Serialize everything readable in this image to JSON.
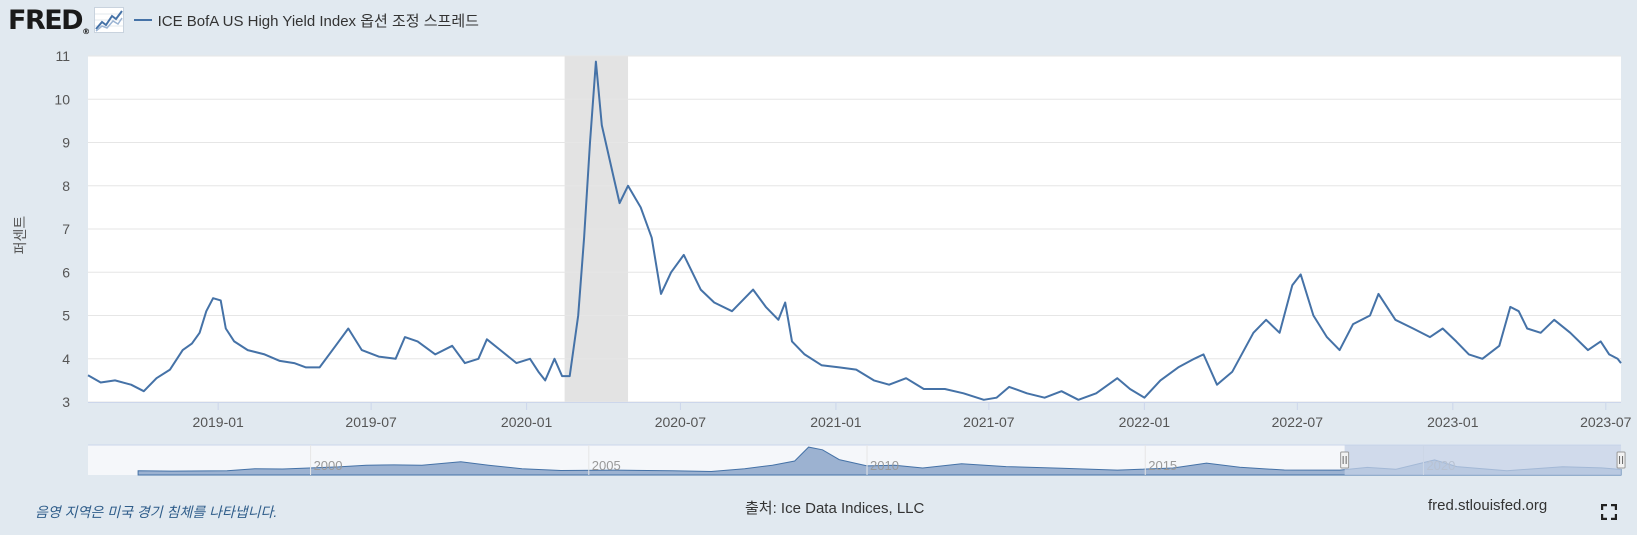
{
  "header": {
    "logo_text": "FRED",
    "logo_mark": "®",
    "series_title": "ICE BofA US High Yield Index 옵션 조정 스프레드"
  },
  "yaxis_title": "퍼센트",
  "footer": {
    "recession_note": "음영 지역은 미국 경기 침체를 나타냅니다.",
    "source": "출처: Ice Data Indices, LLC",
    "site": "fred.stlouisfed.org"
  },
  "icons": {
    "logo_chart": "line-chart-icon",
    "fullscreen": "fullscreen-icon"
  },
  "colors": {
    "line": "#4572a7",
    "recession": "#e3e3e3",
    "navigator_fill": "#7d9bc3",
    "navigator_mask": "#c3d0e6"
  },
  "chart_data": {
    "type": "line",
    "series": [
      {
        "values": [
          [
            "2018-07-31",
            3.62
          ],
          [
            "2018-08-15",
            3.45
          ],
          [
            "2018-09-01",
            3.5
          ],
          [
            "2018-09-20",
            3.4
          ],
          [
            "2018-10-05",
            3.25
          ],
          [
            "2018-10-20",
            3.55
          ],
          [
            "2018-11-05",
            3.75
          ],
          [
            "2018-11-20",
            4.2
          ],
          [
            "2018-12-01",
            4.35
          ],
          [
            "2018-12-10",
            4.6
          ],
          [
            "2018-12-18",
            5.1
          ],
          [
            "2018-12-26",
            5.4
          ],
          [
            "2019-01-04",
            5.35
          ],
          [
            "2019-01-10",
            4.7
          ],
          [
            "2019-01-20",
            4.4
          ],
          [
            "2019-02-05",
            4.2
          ],
          [
            "2019-02-25",
            4.1
          ],
          [
            "2019-03-15",
            3.95
          ],
          [
            "2019-04-01",
            3.9
          ],
          [
            "2019-04-15",
            3.8
          ],
          [
            "2019-05-01",
            3.8
          ],
          [
            "2019-05-20",
            4.3
          ],
          [
            "2019-06-04",
            4.7
          ],
          [
            "2019-06-20",
            4.2
          ],
          [
            "2019-07-10",
            4.05
          ],
          [
            "2019-07-30",
            4.0
          ],
          [
            "2019-08-10",
            4.5
          ],
          [
            "2019-08-25",
            4.4
          ],
          [
            "2019-09-15",
            4.1
          ],
          [
            "2019-10-05",
            4.3
          ],
          [
            "2019-10-20",
            3.9
          ],
          [
            "2019-11-05",
            4.0
          ],
          [
            "2019-11-15",
            4.45
          ],
          [
            "2019-12-01",
            4.2
          ],
          [
            "2019-12-20",
            3.9
          ],
          [
            "2020-01-05",
            4.0
          ],
          [
            "2020-01-15",
            3.7
          ],
          [
            "2020-01-23",
            3.5
          ],
          [
            "2020-02-03",
            4.0
          ],
          [
            "2020-02-12",
            3.6
          ],
          [
            "2020-02-21",
            3.6
          ],
          [
            "2020-03-02",
            5.0
          ],
          [
            "2020-03-09",
            6.8
          ],
          [
            "2020-03-16",
            9.0
          ],
          [
            "2020-03-23",
            10.87
          ],
          [
            "2020-03-30",
            9.4
          ],
          [
            "2020-04-06",
            8.8
          ],
          [
            "2020-04-13",
            8.2
          ],
          [
            "2020-04-20",
            7.6
          ],
          [
            "2020-04-30",
            8.0
          ],
          [
            "2020-05-15",
            7.5
          ],
          [
            "2020-05-28",
            6.8
          ],
          [
            "2020-06-08",
            5.5
          ],
          [
            "2020-06-20",
            6.0
          ],
          [
            "2020-07-05",
            6.4
          ],
          [
            "2020-07-25",
            5.6
          ],
          [
            "2020-08-10",
            5.3
          ],
          [
            "2020-08-31",
            5.1
          ],
          [
            "2020-09-25",
            5.6
          ],
          [
            "2020-10-10",
            5.2
          ],
          [
            "2020-10-25",
            4.9
          ],
          [
            "2020-11-02",
            5.3
          ],
          [
            "2020-11-10",
            4.4
          ],
          [
            "2020-11-25",
            4.1
          ],
          [
            "2020-12-15",
            3.85
          ],
          [
            "2021-01-05",
            3.8
          ],
          [
            "2021-01-25",
            3.75
          ],
          [
            "2021-02-15",
            3.5
          ],
          [
            "2021-03-05",
            3.4
          ],
          [
            "2021-03-25",
            3.55
          ],
          [
            "2021-04-15",
            3.3
          ],
          [
            "2021-05-10",
            3.3
          ],
          [
            "2021-06-01",
            3.2
          ],
          [
            "2021-06-25",
            3.05
          ],
          [
            "2021-07-10",
            3.1
          ],
          [
            "2021-07-25",
            3.35
          ],
          [
            "2021-08-15",
            3.2
          ],
          [
            "2021-09-05",
            3.1
          ],
          [
            "2021-09-25",
            3.25
          ],
          [
            "2021-10-15",
            3.05
          ],
          [
            "2021-11-05",
            3.2
          ],
          [
            "2021-11-30",
            3.55
          ],
          [
            "2021-12-15",
            3.3
          ],
          [
            "2022-01-01",
            3.1
          ],
          [
            "2022-01-20",
            3.5
          ],
          [
            "2022-02-10",
            3.8
          ],
          [
            "2022-03-01",
            4.0
          ],
          [
            "2022-03-12",
            4.1
          ],
          [
            "2022-03-28",
            3.4
          ],
          [
            "2022-04-15",
            3.7
          ],
          [
            "2022-05-10",
            4.6
          ],
          [
            "2022-05-25",
            4.9
          ],
          [
            "2022-06-10",
            4.6
          ],
          [
            "2022-06-25",
            5.7
          ],
          [
            "2022-07-05",
            5.95
          ],
          [
            "2022-07-20",
            5.0
          ],
          [
            "2022-08-05",
            4.5
          ],
          [
            "2022-08-20",
            4.2
          ],
          [
            "2022-09-05",
            4.8
          ],
          [
            "2022-09-25",
            5.0
          ],
          [
            "2022-10-05",
            5.5
          ],
          [
            "2022-10-25",
            4.9
          ],
          [
            "2022-11-15",
            4.7
          ],
          [
            "2022-12-05",
            4.5
          ],
          [
            "2022-12-20",
            4.7
          ],
          [
            "2023-01-05",
            4.4
          ],
          [
            "2023-01-20",
            4.1
          ],
          [
            "2023-02-05",
            4.0
          ],
          [
            "2023-02-25",
            4.3
          ],
          [
            "2023-03-10",
            5.2
          ],
          [
            "2023-03-20",
            5.1
          ],
          [
            "2023-03-30",
            4.7
          ],
          [
            "2023-04-15",
            4.6
          ],
          [
            "2023-05-01",
            4.9
          ],
          [
            "2023-05-20",
            4.6
          ],
          [
            "2023-06-10",
            4.2
          ],
          [
            "2023-06-25",
            4.4
          ],
          [
            "2023-07-05",
            4.1
          ],
          [
            "2023-07-15",
            4.0
          ],
          [
            "2023-07-19",
            3.9
          ]
        ]
      }
    ],
    "recessions": [
      [
        "2020-02-15",
        "2020-04-30"
      ]
    ],
    "xlim": [
      "2018-07-31",
      "2023-07-19"
    ],
    "ylim": [
      3,
      11
    ],
    "yticks": [
      "3",
      "4",
      "5",
      "6",
      "7",
      "8",
      "9",
      "10",
      "11"
    ],
    "xticks": [
      "2019-01",
      "2019-07",
      "2020-01",
      "2020-07",
      "2021-01",
      "2021-07",
      "2022-01",
      "2022-07",
      "2023-01",
      "2023-07"
    ],
    "grid": "horizontal",
    "navigator": {
      "labels": [
        "2000",
        "2005",
        "2010",
        "2015",
        "2020"
      ],
      "range": [
        1996,
        2023.55
      ],
      "selected": [
        "2018-07-31",
        "2023-07-19"
      ],
      "values": [
        [
          1996.9,
          3.0
        ],
        [
          1997.5,
          2.8
        ],
        [
          1998.5,
          3.0
        ],
        [
          1999.0,
          4.5
        ],
        [
          1999.5,
          4.3
        ],
        [
          2000.5,
          5.8
        ],
        [
          2001.0,
          7.0
        ],
        [
          2001.5,
          7.2
        ],
        [
          2002.0,
          7.0
        ],
        [
          2002.7,
          9.5
        ],
        [
          2003.2,
          7.0
        ],
        [
          2003.8,
          4.5
        ],
        [
          2004.5,
          3.2
        ],
        [
          2005.5,
          3.5
        ],
        [
          2006.5,
          3.0
        ],
        [
          2007.2,
          2.5
        ],
        [
          2007.8,
          4.5
        ],
        [
          2008.3,
          7.0
        ],
        [
          2008.7,
          10.0
        ],
        [
          2008.95,
          19.9
        ],
        [
          2009.2,
          18.0
        ],
        [
          2009.5,
          11.0
        ],
        [
          2010.0,
          6.5
        ],
        [
          2010.5,
          7.0
        ],
        [
          2011.0,
          5.0
        ],
        [
          2011.7,
          8.0
        ],
        [
          2012.5,
          6.0
        ],
        [
          2013.5,
          4.8
        ],
        [
          2014.5,
          3.5
        ],
        [
          2015.5,
          5.0
        ],
        [
          2016.1,
          8.5
        ],
        [
          2016.7,
          5.5
        ],
        [
          2017.5,
          3.6
        ],
        [
          2018.5,
          3.5
        ],
        [
          2018.99,
          5.4
        ],
        [
          2019.5,
          4.1
        ],
        [
          2020.2,
          10.8
        ],
        [
          2020.6,
          6.0
        ],
        [
          2021.5,
          3.1
        ],
        [
          2022.5,
          5.9
        ],
        [
          2023.2,
          5.1
        ],
        [
          2023.55,
          3.9
        ]
      ]
    }
  }
}
